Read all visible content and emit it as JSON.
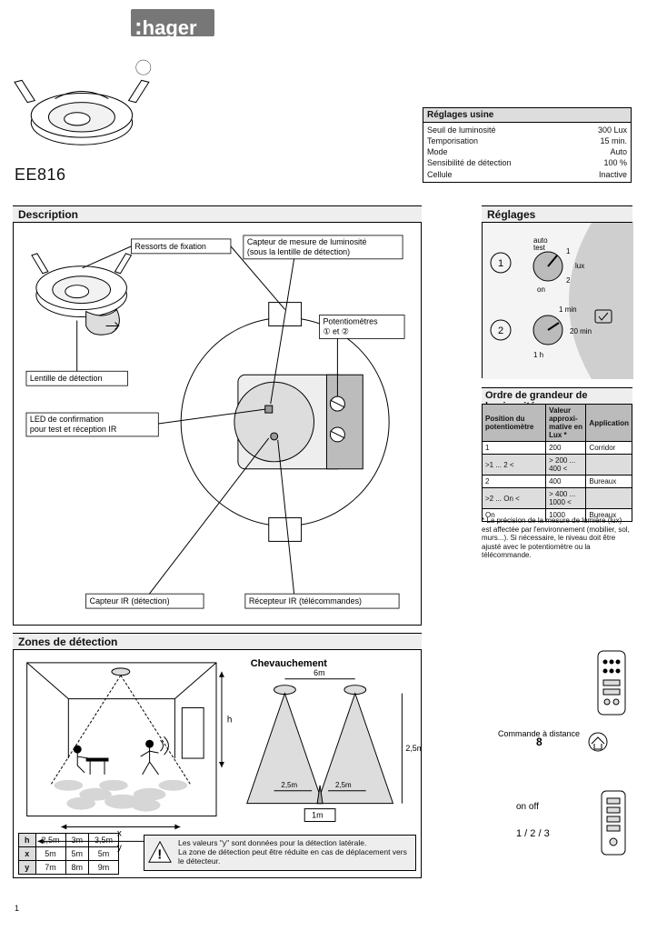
{
  "brand": {
    "dots": ":",
    "name": "hager"
  },
  "product": {
    "code": "EE816"
  },
  "factory": {
    "title": "Réglages usine",
    "rows": [
      {
        "k": "Seuil de luminosité",
        "v": "300 Lux"
      },
      {
        "k": "Temporisation",
        "v": "15 min."
      },
      {
        "k": "Mode",
        "v": "Auto"
      },
      {
        "k": "Sensibilité de détection",
        "v": "100 %"
      },
      {
        "k": "Cellule",
        "v": "Inactive"
      }
    ]
  },
  "sections": {
    "description": "Description",
    "reglages": "Réglages",
    "zones": "Zones de détection",
    "lux": "Ordre de grandeur de luminosité"
  },
  "description": {
    "labels": {
      "ressorts": "Ressorts de fixation",
      "capteur_lum": "Capteur de mesure de luminosité\n(sous la lentille de détection)",
      "potentiometres": "Potentiomètres\n① et ②",
      "lentille": "Lentille de détection",
      "led": "LED de confirmation\npour test et réception IR",
      "capteur_ir": "Capteur IR (détection)",
      "recepteur_ir": "Récepteur IR (télécommandes)"
    },
    "colors": {
      "line": "#000000",
      "fill_light": "#f4f4f4",
      "fill_grey": "#cfcfcf"
    }
  },
  "reglages": {
    "knob1": {
      "num": "1",
      "labels": [
        "auto",
        "test",
        "1",
        "lux",
        "2",
        "on"
      ]
    },
    "knob2": {
      "num": "2",
      "labels": [
        "1 min",
        "20 min",
        "1 h"
      ]
    },
    "colors": {
      "arc": "#cfcfcf",
      "page": "#f4f4f4"
    }
  },
  "lux_table": {
    "headers": [
      "Position du potentiomètre",
      "Valeur approxi-\nmative en Lux *",
      "Application"
    ],
    "rows": [
      {
        "cells": [
          "1",
          "200",
          "Corridor"
        ],
        "shade": false
      },
      {
        "cells": [
          ">1 ... 2 <",
          "> 200 ... 400 <",
          ""
        ],
        "shade": true
      },
      {
        "cells": [
          "2",
          "400",
          "Bureaux"
        ],
        "shade": false
      },
      {
        "cells": [
          ">2 ... On <",
          "> 400 ... 1000 <",
          ""
        ],
        "shade": true
      },
      {
        "cells": [
          "On",
          "1000",
          "Bureaux"
        ],
        "shade": false
      }
    ],
    "note": "* La précision de la mesure de lumière (lux) est affectée par l'environnement (mobilier, sol, murs...). Si nécessaire, le niveau doit être ajusté avec le potentiomètre ou la télécommande."
  },
  "zones": {
    "chev_title": "Chevauchement",
    "dims": {
      "d6m": "6m",
      "d25m_side": "2,5m",
      "d25m_h": "2,5m",
      "d1m": "1m",
      "x": "x",
      "y": "y",
      "h": "h"
    },
    "dim_table": {
      "rows": [
        {
          "k": "h",
          "v": [
            "2,5m",
            "3m",
            "3,5m"
          ]
        },
        {
          "k": "x",
          "v": [
            "5m",
            "5m",
            "5m"
          ]
        },
        {
          "k": "y",
          "v": [
            "7m",
            "8m",
            "9m"
          ]
        }
      ]
    },
    "warn": "Les valeurs \"y\" sont données pour la détection latérale.\nLa zone de détection peut être réduite en cas de déplacement vers le détecteur."
  },
  "remote": {
    "title": "Commande à distance",
    "modes": {
      "on": "on",
      "off": "off",
      "nums": [
        "1",
        "2",
        "3"
      ]
    }
  },
  "page_number": "1"
}
